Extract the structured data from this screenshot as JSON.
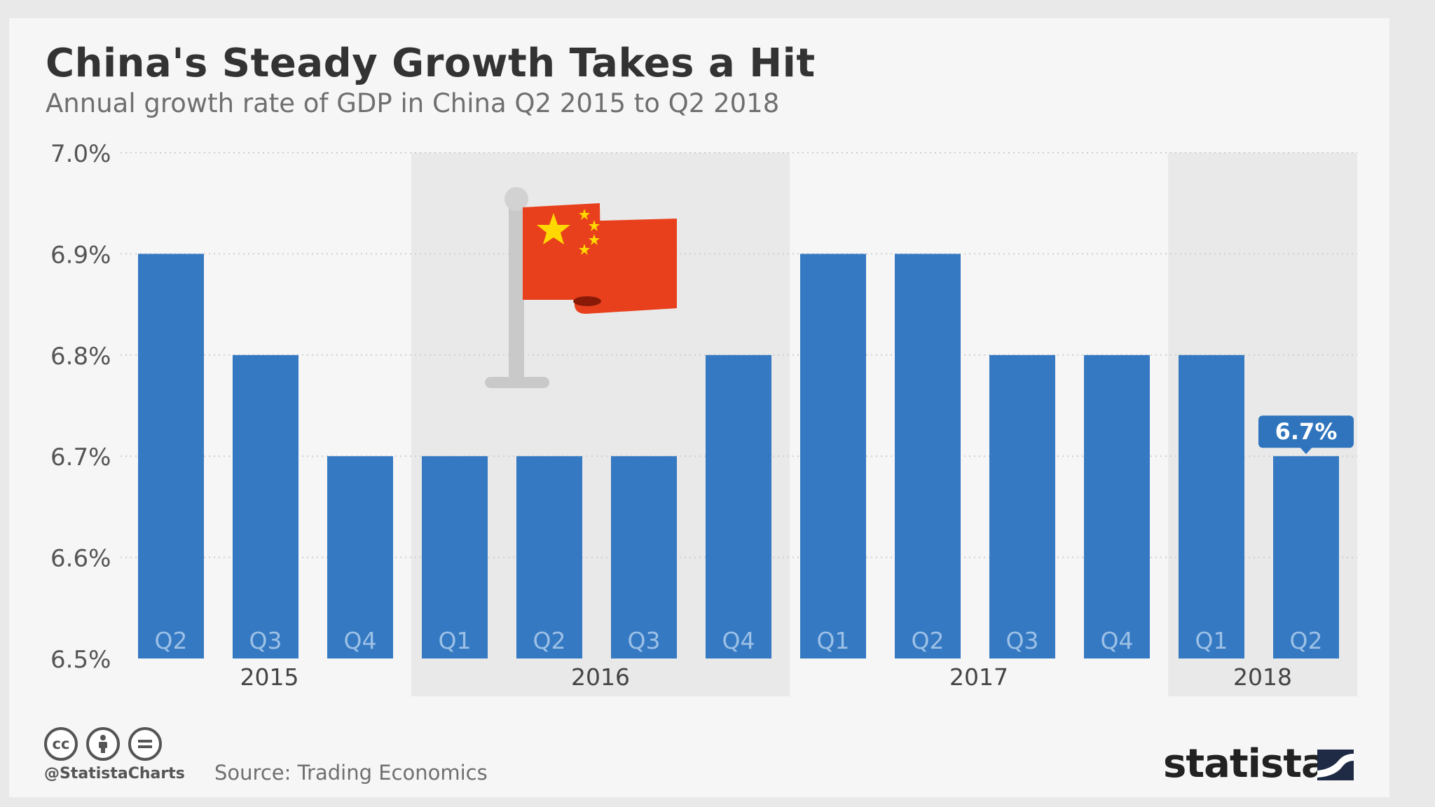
{
  "header": {
    "title": "China's Steady Growth Takes a Hit",
    "subtitle": "Annual growth rate of GDP in China Q2 2015 to Q2 2018"
  },
  "footer": {
    "handle": "@StatistaCharts",
    "source": "Source: Trading Economics",
    "brand": "statista",
    "license_icons": [
      "creative-commons-icon",
      "attribution-icon",
      "no-derivatives-icon"
    ]
  },
  "colors": {
    "bar": "#3479c2",
    "band": "#e9e9e9",
    "background": "#f6f6f6",
    "flag_red": "#e8401c",
    "flag_star": "#ffd800"
  },
  "chart_data": {
    "type": "bar",
    "title": "China's Steady Growth Takes a Hit",
    "subtitle": "Annual growth rate of GDP in China Q2 2015 to Q2 2018",
    "ylim": [
      6.5,
      7.0
    ],
    "yticks": [
      "6.5%",
      "6.6%",
      "6.7%",
      "6.8%",
      "6.9%",
      "7.0%"
    ],
    "grid": true,
    "categories": [
      "Q2",
      "Q3",
      "Q4",
      "Q1",
      "Q2",
      "Q3",
      "Q4",
      "Q1",
      "Q2",
      "Q3",
      "Q4",
      "Q1",
      "Q2"
    ],
    "values": [
      6.9,
      6.8,
      6.7,
      6.7,
      6.7,
      6.7,
      6.8,
      6.9,
      6.9,
      6.8,
      6.8,
      6.8,
      6.7
    ],
    "year_groups": [
      {
        "label": "2015",
        "count": 3,
        "shaded": false
      },
      {
        "label": "2016",
        "count": 4,
        "shaded": true
      },
      {
        "label": "2017",
        "count": 4,
        "shaded": false
      },
      {
        "label": "2018",
        "count": 2,
        "shaded": true
      }
    ],
    "highlight": {
      "index": 12,
      "label": "6.7%"
    }
  }
}
